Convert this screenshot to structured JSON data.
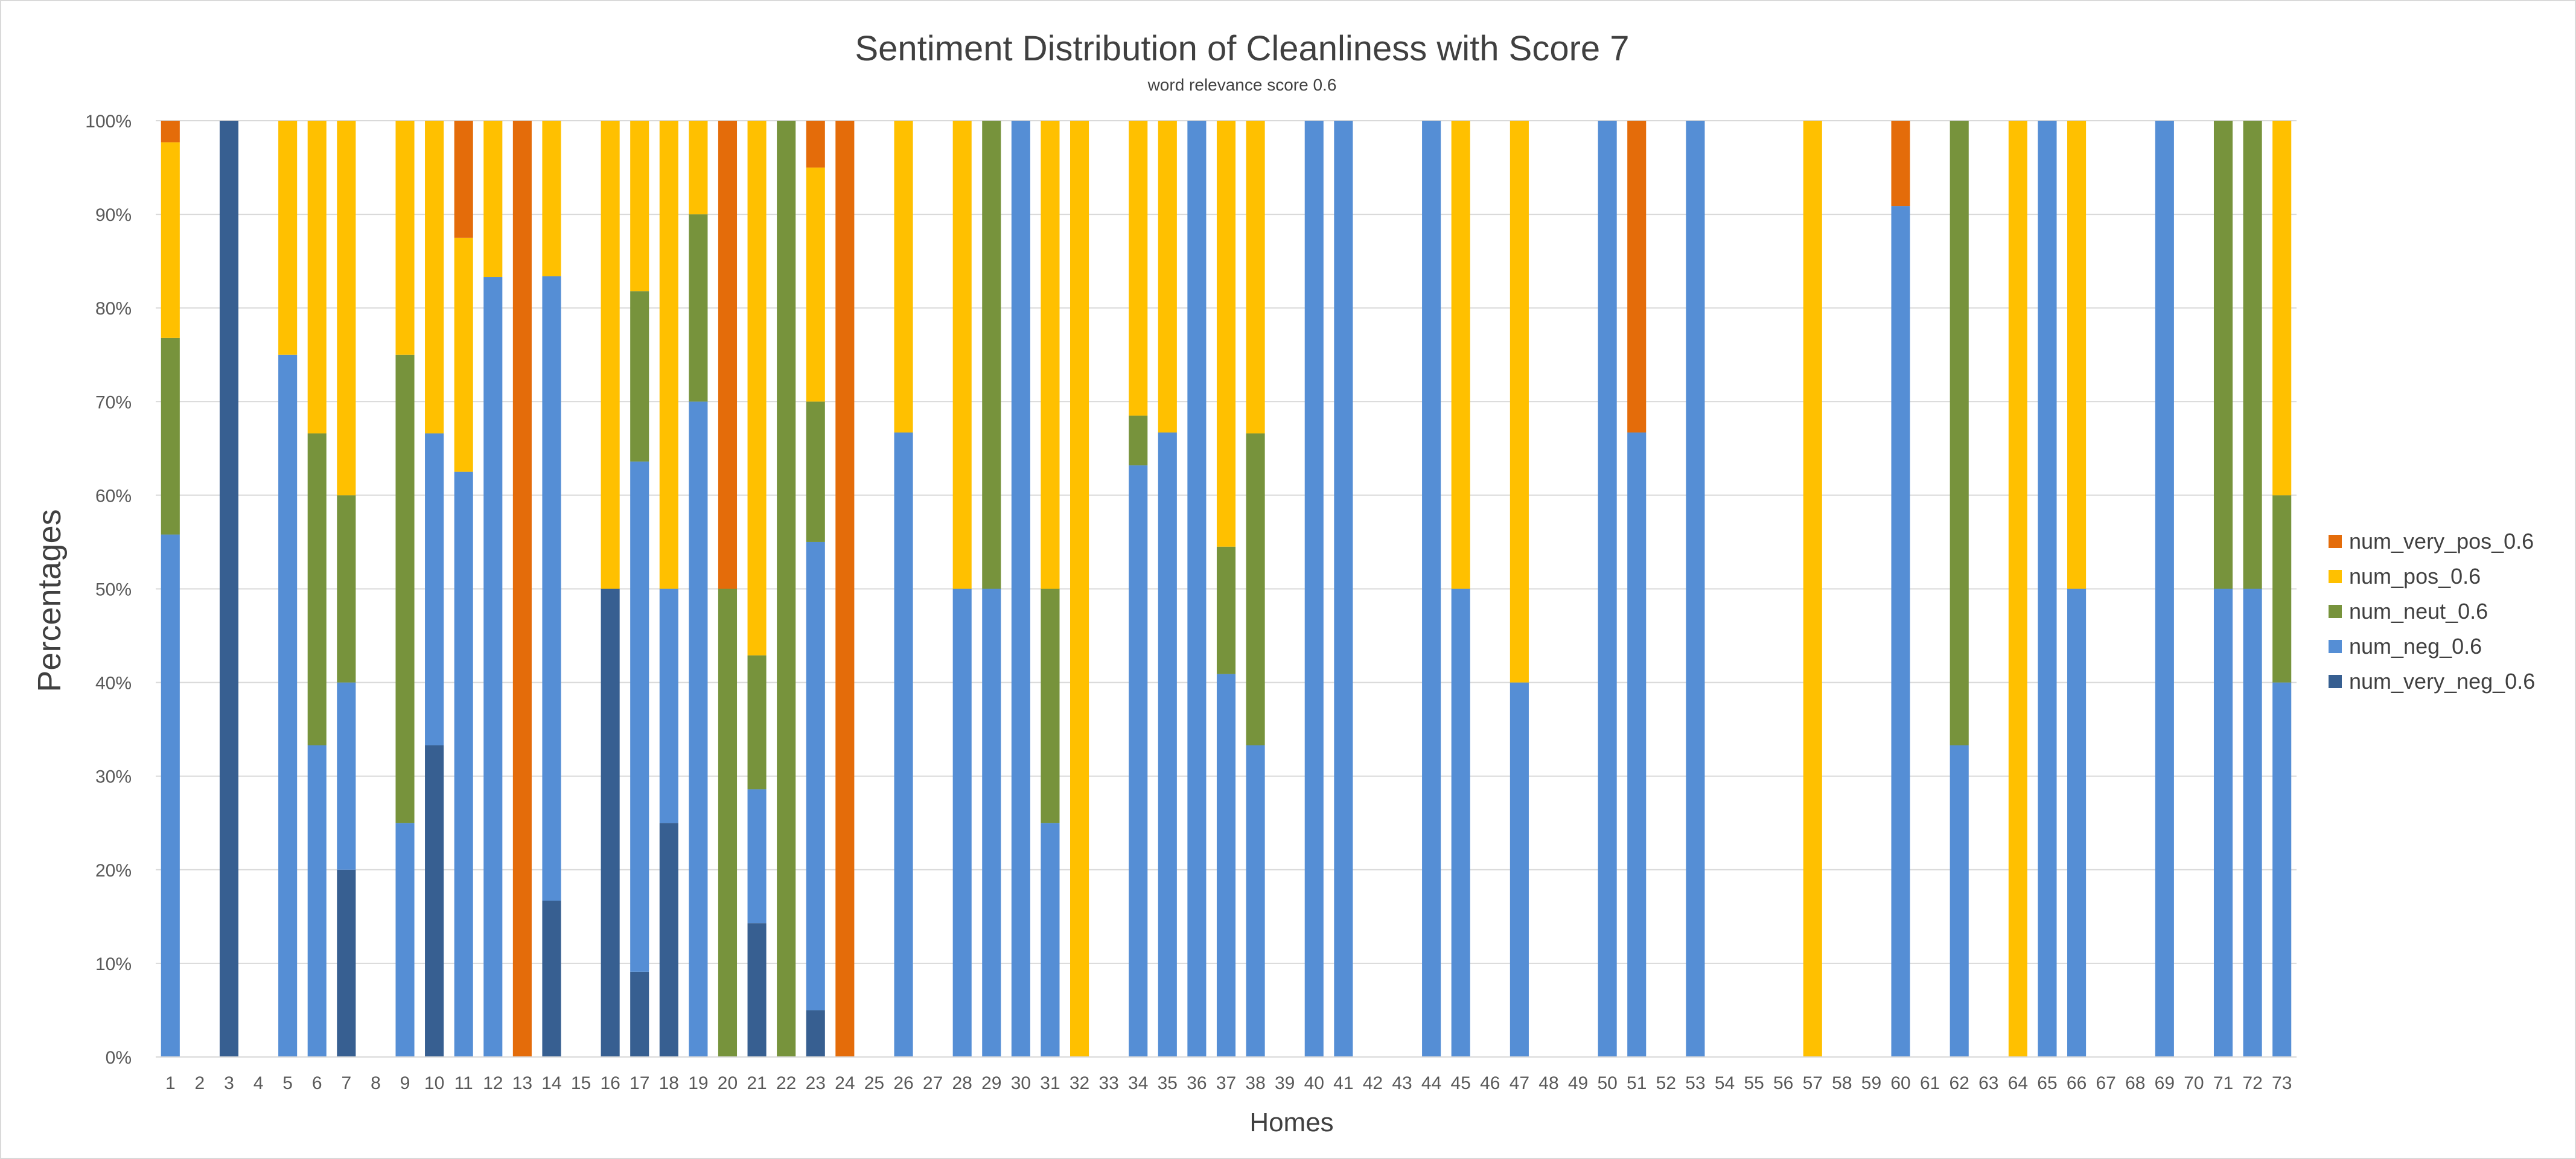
{
  "chart_data": {
    "type": "bar",
    "stacked": "percent",
    "title": "Sentiment Distribution of Cleanliness with Score 7",
    "subtitle": "word relevance score 0.6",
    "xlabel": "Homes",
    "ylabel": "Percentages",
    "ylim": [
      0,
      100
    ],
    "yticks": [
      "0%",
      "10%",
      "20%",
      "30%",
      "40%",
      "50%",
      "60%",
      "70%",
      "80%",
      "90%",
      "100%"
    ],
    "grid": true,
    "legend_position": "right",
    "categories": [
      "1",
      "2",
      "3",
      "4",
      "5",
      "6",
      "7",
      "8",
      "9",
      "10",
      "11",
      "12",
      "13",
      "14",
      "15",
      "16",
      "17",
      "18",
      "19",
      "20",
      "21",
      "22",
      "23",
      "24",
      "25",
      "26",
      "27",
      "28",
      "29",
      "30",
      "31",
      "32",
      "33",
      "34",
      "35",
      "36",
      "37",
      "38",
      "39",
      "40",
      "41",
      "42",
      "43",
      "44",
      "45",
      "46",
      "47",
      "48",
      "49",
      "50",
      "51",
      "52",
      "53",
      "54",
      "55",
      "56",
      "57",
      "58",
      "59",
      "60",
      "61",
      "62",
      "63",
      "64",
      "65",
      "66",
      "67",
      "68",
      "69",
      "70",
      "71",
      "72",
      "73"
    ],
    "series": [
      {
        "name": "num_very_neg_0.6",
        "color": "#375F91",
        "values": [
          0,
          0,
          100,
          0,
          0,
          0,
          20,
          0,
          0,
          33.3,
          0,
          0,
          0,
          16.7,
          0,
          50,
          9.1,
          25,
          0,
          0,
          14.3,
          0,
          5,
          0,
          0,
          0,
          0,
          0,
          0,
          0,
          0,
          0,
          0,
          0,
          0,
          0,
          0,
          0,
          0,
          0,
          0,
          0,
          0,
          0,
          0,
          0,
          0,
          0,
          0,
          0,
          0,
          0,
          0,
          0,
          0,
          0,
          0,
          0,
          0,
          0,
          0,
          0,
          0,
          0,
          0,
          0,
          0,
          0,
          0,
          0,
          0,
          0,
          0
        ]
      },
      {
        "name": "num_neg_0.6",
        "color": "#558ED5",
        "values": [
          55.8,
          0,
          0,
          0,
          75,
          33.3,
          20,
          0,
          25,
          33.3,
          62.5,
          83.3,
          0,
          66.7,
          0,
          0,
          54.5,
          25,
          70,
          0,
          14.3,
          0,
          50,
          0,
          0,
          66.7,
          0,
          50,
          50,
          100,
          25,
          0,
          0,
          63.2,
          66.7,
          100,
          40.9,
          33.3,
          0,
          100,
          100,
          0,
          0,
          100,
          50,
          0,
          40,
          0,
          0,
          100,
          66.7,
          0,
          100,
          0,
          0,
          0,
          0,
          0,
          0,
          90.9,
          0,
          33.3,
          0,
          0,
          100,
          50,
          0,
          0,
          100,
          0,
          50,
          50,
          40
        ]
      },
      {
        "name": "num_neut_0.6",
        "color": "#77933C",
        "values": [
          21,
          0,
          0,
          0,
          0,
          33.3,
          20,
          0,
          50,
          0,
          0,
          0,
          0,
          0,
          0,
          0,
          18.2,
          0,
          20,
          50,
          14.3,
          100,
          15,
          0,
          0,
          0,
          0,
          0,
          50,
          0,
          25,
          0,
          0,
          5.3,
          0,
          0,
          13.6,
          33.3,
          0,
          0,
          0,
          0,
          0,
          0,
          0,
          0,
          0,
          0,
          0,
          0,
          0,
          0,
          0,
          0,
          0,
          0,
          0,
          0,
          0,
          0,
          0,
          66.7,
          0,
          0,
          0,
          0,
          0,
          0,
          0,
          0,
          50,
          50,
          20
        ]
      },
      {
        "name": "num_pos_0.6",
        "color": "#FFC000",
        "values": [
          20.9,
          0,
          0,
          0,
          25,
          33.4,
          40,
          0,
          25,
          33.4,
          25,
          16.7,
          0,
          16.6,
          0,
          50,
          18.2,
          50,
          10,
          0,
          57.1,
          0,
          25,
          0,
          0,
          33.3,
          0,
          50,
          0,
          0,
          50,
          100,
          0,
          31.5,
          33.3,
          0,
          45.5,
          33.4,
          0,
          0,
          0,
          0,
          0,
          0,
          50,
          0,
          60,
          0,
          0,
          0,
          0,
          0,
          0,
          0,
          0,
          0,
          100,
          0,
          0,
          0,
          0,
          0,
          0,
          100,
          0,
          50,
          0,
          0,
          0,
          0,
          0,
          0,
          40
        ]
      },
      {
        "name": "num_very_pos_0.6",
        "color": "#E46C0A",
        "values": [
          2.3,
          0,
          0,
          0,
          0,
          0,
          0,
          0,
          0,
          0,
          12.5,
          0,
          100,
          0,
          0,
          0,
          0,
          0,
          0,
          50,
          0,
          0,
          5,
          100,
          0,
          0,
          0,
          0,
          0,
          0,
          0,
          0,
          0,
          0,
          0,
          0,
          0,
          0,
          0,
          0,
          0,
          0,
          0,
          0,
          0,
          0,
          0,
          0,
          0,
          0,
          33.3,
          0,
          0,
          0,
          0,
          0,
          0,
          0,
          0,
          9.1,
          0,
          0,
          0,
          0,
          0,
          0,
          0,
          0,
          0,
          0,
          0,
          0,
          0
        ]
      }
    ]
  }
}
